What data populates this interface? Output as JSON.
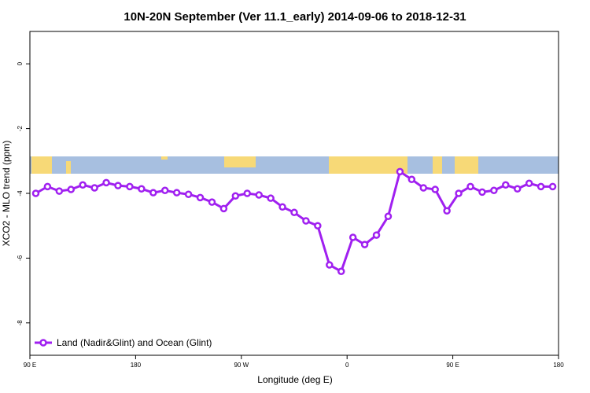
{
  "chart_data": {
    "type": "line",
    "title": "10N-20N September (Ver 11.1_early)   2014-09-06 to 2018-12-31",
    "x_label": "Longitude (deg E)",
    "y_label": "XCO2 - MLO trend (ppm)",
    "xlim": [
      90,
      540
    ],
    "xticks": [
      {
        "value": 90,
        "label": "90 E"
      },
      180,
      {
        "value": 270,
        "label": "90 W"
      },
      {
        "value": 360,
        "label": "0"
      },
      {
        "value": 450,
        "label": "90 E"
      },
      {
        "value": 540,
        "label": "180"
      }
    ],
    "ylim": [
      -9,
      1
    ],
    "yticks": [
      0,
      -2,
      -4,
      -6,
      -8
    ],
    "legend": "bottom-left",
    "x": [
      95,
      105,
      115,
      125,
      135,
      145,
      155,
      165,
      175,
      185,
      195,
      205,
      215,
      225,
      235,
      245,
      255,
      265,
      275,
      285,
      295,
      305,
      315,
      325,
      335,
      345,
      355,
      365,
      375,
      385,
      395,
      405,
      415,
      425,
      435,
      445,
      455,
      465,
      475,
      485,
      495,
      505,
      515,
      525,
      535
    ],
    "series": [
      {
        "name": "Land (Nadir&Glint) and Ocean (Glint)",
        "color": "#a020f0",
        "values": [
          -4.0,
          -3.79,
          -3.93,
          -3.88,
          -3.74,
          -3.83,
          -3.67,
          -3.76,
          -3.79,
          -3.86,
          -3.98,
          -3.91,
          -3.98,
          -4.03,
          -4.13,
          -4.27,
          -4.47,
          -4.08,
          -4.0,
          -4.05,
          -4.15,
          -4.42,
          -4.59,
          -4.85,
          -5.0,
          -6.21,
          -6.41,
          -5.36,
          -5.58,
          -5.29,
          -4.71,
          -3.33,
          -3.57,
          -3.83,
          -3.88,
          -4.54,
          -4.0,
          -3.79,
          -3.96,
          -3.91,
          -3.74,
          -3.86,
          -3.69,
          -3.79,
          -3.79
        ]
      }
    ]
  }
}
